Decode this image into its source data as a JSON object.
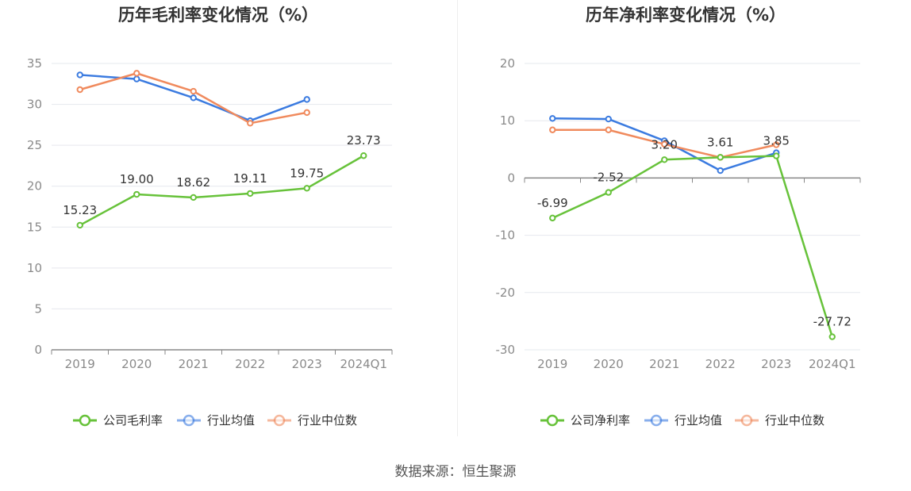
{
  "colors": {
    "company": "#67c23a",
    "industry_avg": "#3b7be0",
    "industry_median": "#f08a5d",
    "grid": "#e6e8ee",
    "axis": "#888888"
  },
  "chart_data": [
    {
      "type": "line",
      "title": "历年毛利率变化情况（%）",
      "categories": [
        "2019",
        "2020",
        "2021",
        "2022",
        "2023",
        "2024Q1"
      ],
      "ylim": [
        0,
        35
      ],
      "yticks": [
        0,
        5,
        10,
        15,
        20,
        25,
        30,
        35
      ],
      "grid": true,
      "legend_position": "bottom-center",
      "series": [
        {
          "name": "公司毛利率",
          "color": "#67c23a",
          "values": [
            15.23,
            19.0,
            18.62,
            19.11,
            19.75,
            23.73
          ],
          "labels": [
            "15.23",
            "19.00",
            "18.62",
            "19.11",
            "19.75",
            "23.73"
          ]
        },
        {
          "name": "行业均值",
          "color": "#3b7be0",
          "values": [
            33.6,
            33.1,
            30.8,
            28.0,
            30.6,
            null
          ]
        },
        {
          "name": "行业中位数",
          "color": "#f08a5d",
          "values": [
            31.8,
            33.8,
            31.6,
            27.7,
            29.0,
            null
          ]
        }
      ]
    },
    {
      "type": "line",
      "title": "历年净利率变化情况（%）",
      "categories": [
        "2019",
        "2020",
        "2021",
        "2022",
        "2023",
        "2024Q1"
      ],
      "ylim": [
        -30,
        20
      ],
      "yticks": [
        -30,
        -20,
        -10,
        0,
        10,
        20
      ],
      "grid": true,
      "legend_position": "bottom-center",
      "series": [
        {
          "name": "公司净利率",
          "color": "#67c23a",
          "values": [
            -6.99,
            -2.52,
            3.2,
            3.61,
            3.85,
            -27.72
          ],
          "labels": [
            "-6.99",
            "-2.52",
            "3.20",
            "3.61",
            "3.85",
            "-27.72"
          ]
        },
        {
          "name": "行业均值",
          "color": "#3b7be0",
          "values": [
            10.4,
            10.3,
            6.5,
            1.3,
            4.4,
            null
          ]
        },
        {
          "name": "行业中位数",
          "color": "#f08a5d",
          "values": [
            8.4,
            8.4,
            5.9,
            3.6,
            5.8,
            null
          ]
        }
      ]
    }
  ],
  "footer": {
    "source": "数据来源：恒生聚源"
  }
}
